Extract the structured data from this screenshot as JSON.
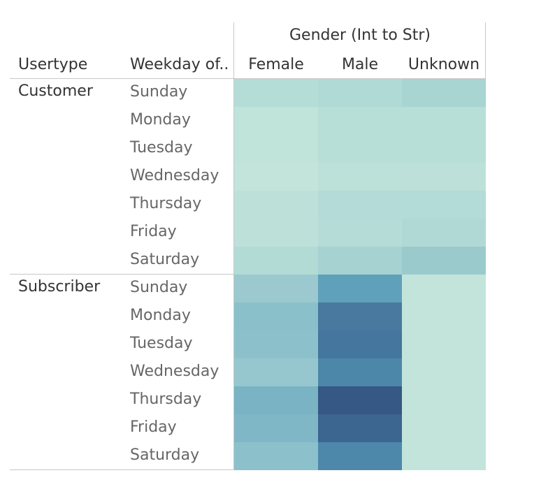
{
  "chart_data": {
    "type": "heatmap",
    "column_group_title": "Gender (Int to Str)",
    "row_headers": [
      "Usertype",
      "Weekday of.."
    ],
    "columns": [
      "Female",
      "Male",
      "Unknown"
    ],
    "groups": [
      {
        "usertype": "Customer",
        "rows": [
          {
            "weekday": "Sunday",
            "colors": [
              "#b5ddd8",
              "#b0dad6",
              "#a8d4d2"
            ]
          },
          {
            "weekday": "Monday",
            "colors": [
              "#c0e3da",
              "#b8ded8",
              "#b8ded8"
            ]
          },
          {
            "weekday": "Tuesday",
            "colors": [
              "#c0e3da",
              "#b8ded8",
              "#b8ded8"
            ]
          },
          {
            "weekday": "Wednesday",
            "colors": [
              "#c2e4db",
              "#bce1d9",
              "#bde1d9"
            ]
          },
          {
            "weekday": "Thursday",
            "colors": [
              "#bde1d9",
              "#b4dbd7",
              "#b3dbd7"
            ]
          },
          {
            "weekday": "Friday",
            "colors": [
              "#bde1d9",
              "#b5dcd7",
              "#b0d9d5"
            ]
          },
          {
            "weekday": "Saturday",
            "colors": [
              "#b3dbd6",
              "#a6d2d2",
              "#9bcacc"
            ]
          }
        ]
      },
      {
        "usertype": "Subscriber",
        "rows": [
          {
            "weekday": "Sunday",
            "colors": [
              "#9bc9cf",
              "#5fa1ba",
              "#c2e4db"
            ]
          },
          {
            "weekday": "Monday",
            "colors": [
              "#8ac0ca",
              "#49799f",
              "#c2e4db"
            ]
          },
          {
            "weekday": "Tuesday",
            "colors": [
              "#8cc1cb",
              "#45769d",
              "#c2e4db"
            ]
          },
          {
            "weekday": "Wednesday",
            "colors": [
              "#96c7ce",
              "#4c87aa",
              "#c2e4db"
            ]
          },
          {
            "weekday": "Thursday",
            "colors": [
              "#7ab3c4",
              "#365884",
              "#c2e4db"
            ]
          },
          {
            "weekday": "Friday",
            "colors": [
              "#80b7c6",
              "#3c6590",
              "#c2e4db"
            ]
          },
          {
            "weekday": "Saturday",
            "colors": [
              "#8cc1cb",
              "#4d88ab",
              "#c2e4db"
            ]
          }
        ]
      }
    ]
  }
}
